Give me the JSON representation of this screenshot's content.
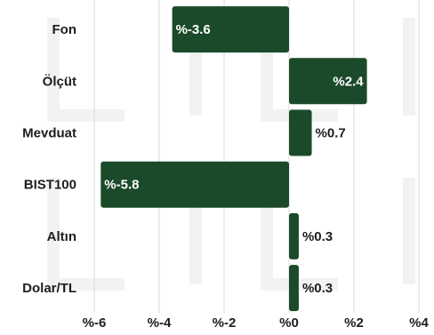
{
  "chart_data": {
    "type": "bar",
    "orientation": "horizontal",
    "categories": [
      "Fon",
      "Ölçüt",
      "Mevduat",
      "BIST100",
      "Altın",
      "Dolar/TL"
    ],
    "values": [
      -3.6,
      2.4,
      0.7,
      -5.8,
      0.3,
      0.3
    ],
    "value_labels": [
      "%-3.6",
      "%2.4",
      "%0.7",
      "%-5.8",
      "%0.3",
      "%0.3"
    ],
    "x_ticks": [
      -6,
      -4,
      -2,
      0,
      2,
      4
    ],
    "x_tick_labels": [
      "%-6",
      "%-4",
      "%-2",
      "%0",
      "%2",
      "%4"
    ],
    "xlim": [
      -6,
      4
    ],
    "grid": true,
    "legend": "none",
    "title": "",
    "xlabel": "",
    "ylabel": ""
  },
  "colors": {
    "bar": "#1b4a2a",
    "grid": "#d9d9d9",
    "text": "#1d1d1d"
  }
}
